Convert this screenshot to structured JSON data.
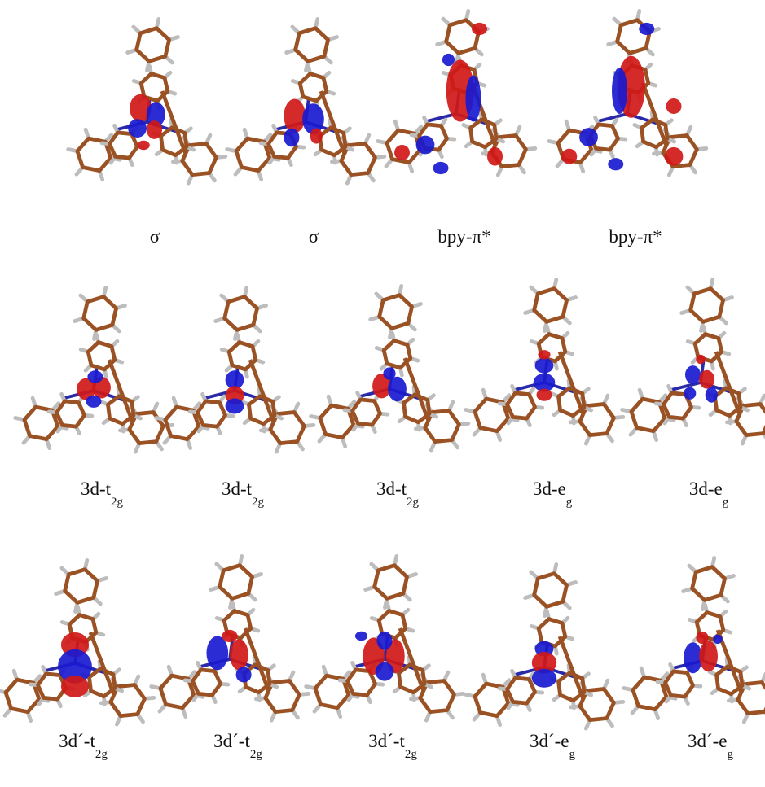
{
  "rows": [
    {
      "orbitals": [
        {
          "label": "σ"
        },
        {
          "label": "σ"
        },
        {
          "label": "bpy-π*"
        },
        {
          "label": "bpy-π*"
        }
      ]
    },
    {
      "orbitals": [
        {
          "label": "3d-t",
          "subscript": "2g"
        },
        {
          "label": "3d-t",
          "subscript": "2g"
        },
        {
          "label": "3d-t",
          "subscript": "2g"
        },
        {
          "label": "3d-e",
          "subscript": "g"
        },
        {
          "label": "3d-e",
          "subscript": "g"
        }
      ]
    },
    {
      "orbitals": [
        {
          "label": "3d´-t",
          "subscript": "2g"
        },
        {
          "label": "3d´-t",
          "subscript": "2g"
        },
        {
          "label": "3d´-t",
          "subscript": "2g"
        },
        {
          "label": "3d´-e",
          "subscript": "g"
        },
        {
          "label": "3d´-e",
          "subscript": "g"
        }
      ]
    }
  ]
}
